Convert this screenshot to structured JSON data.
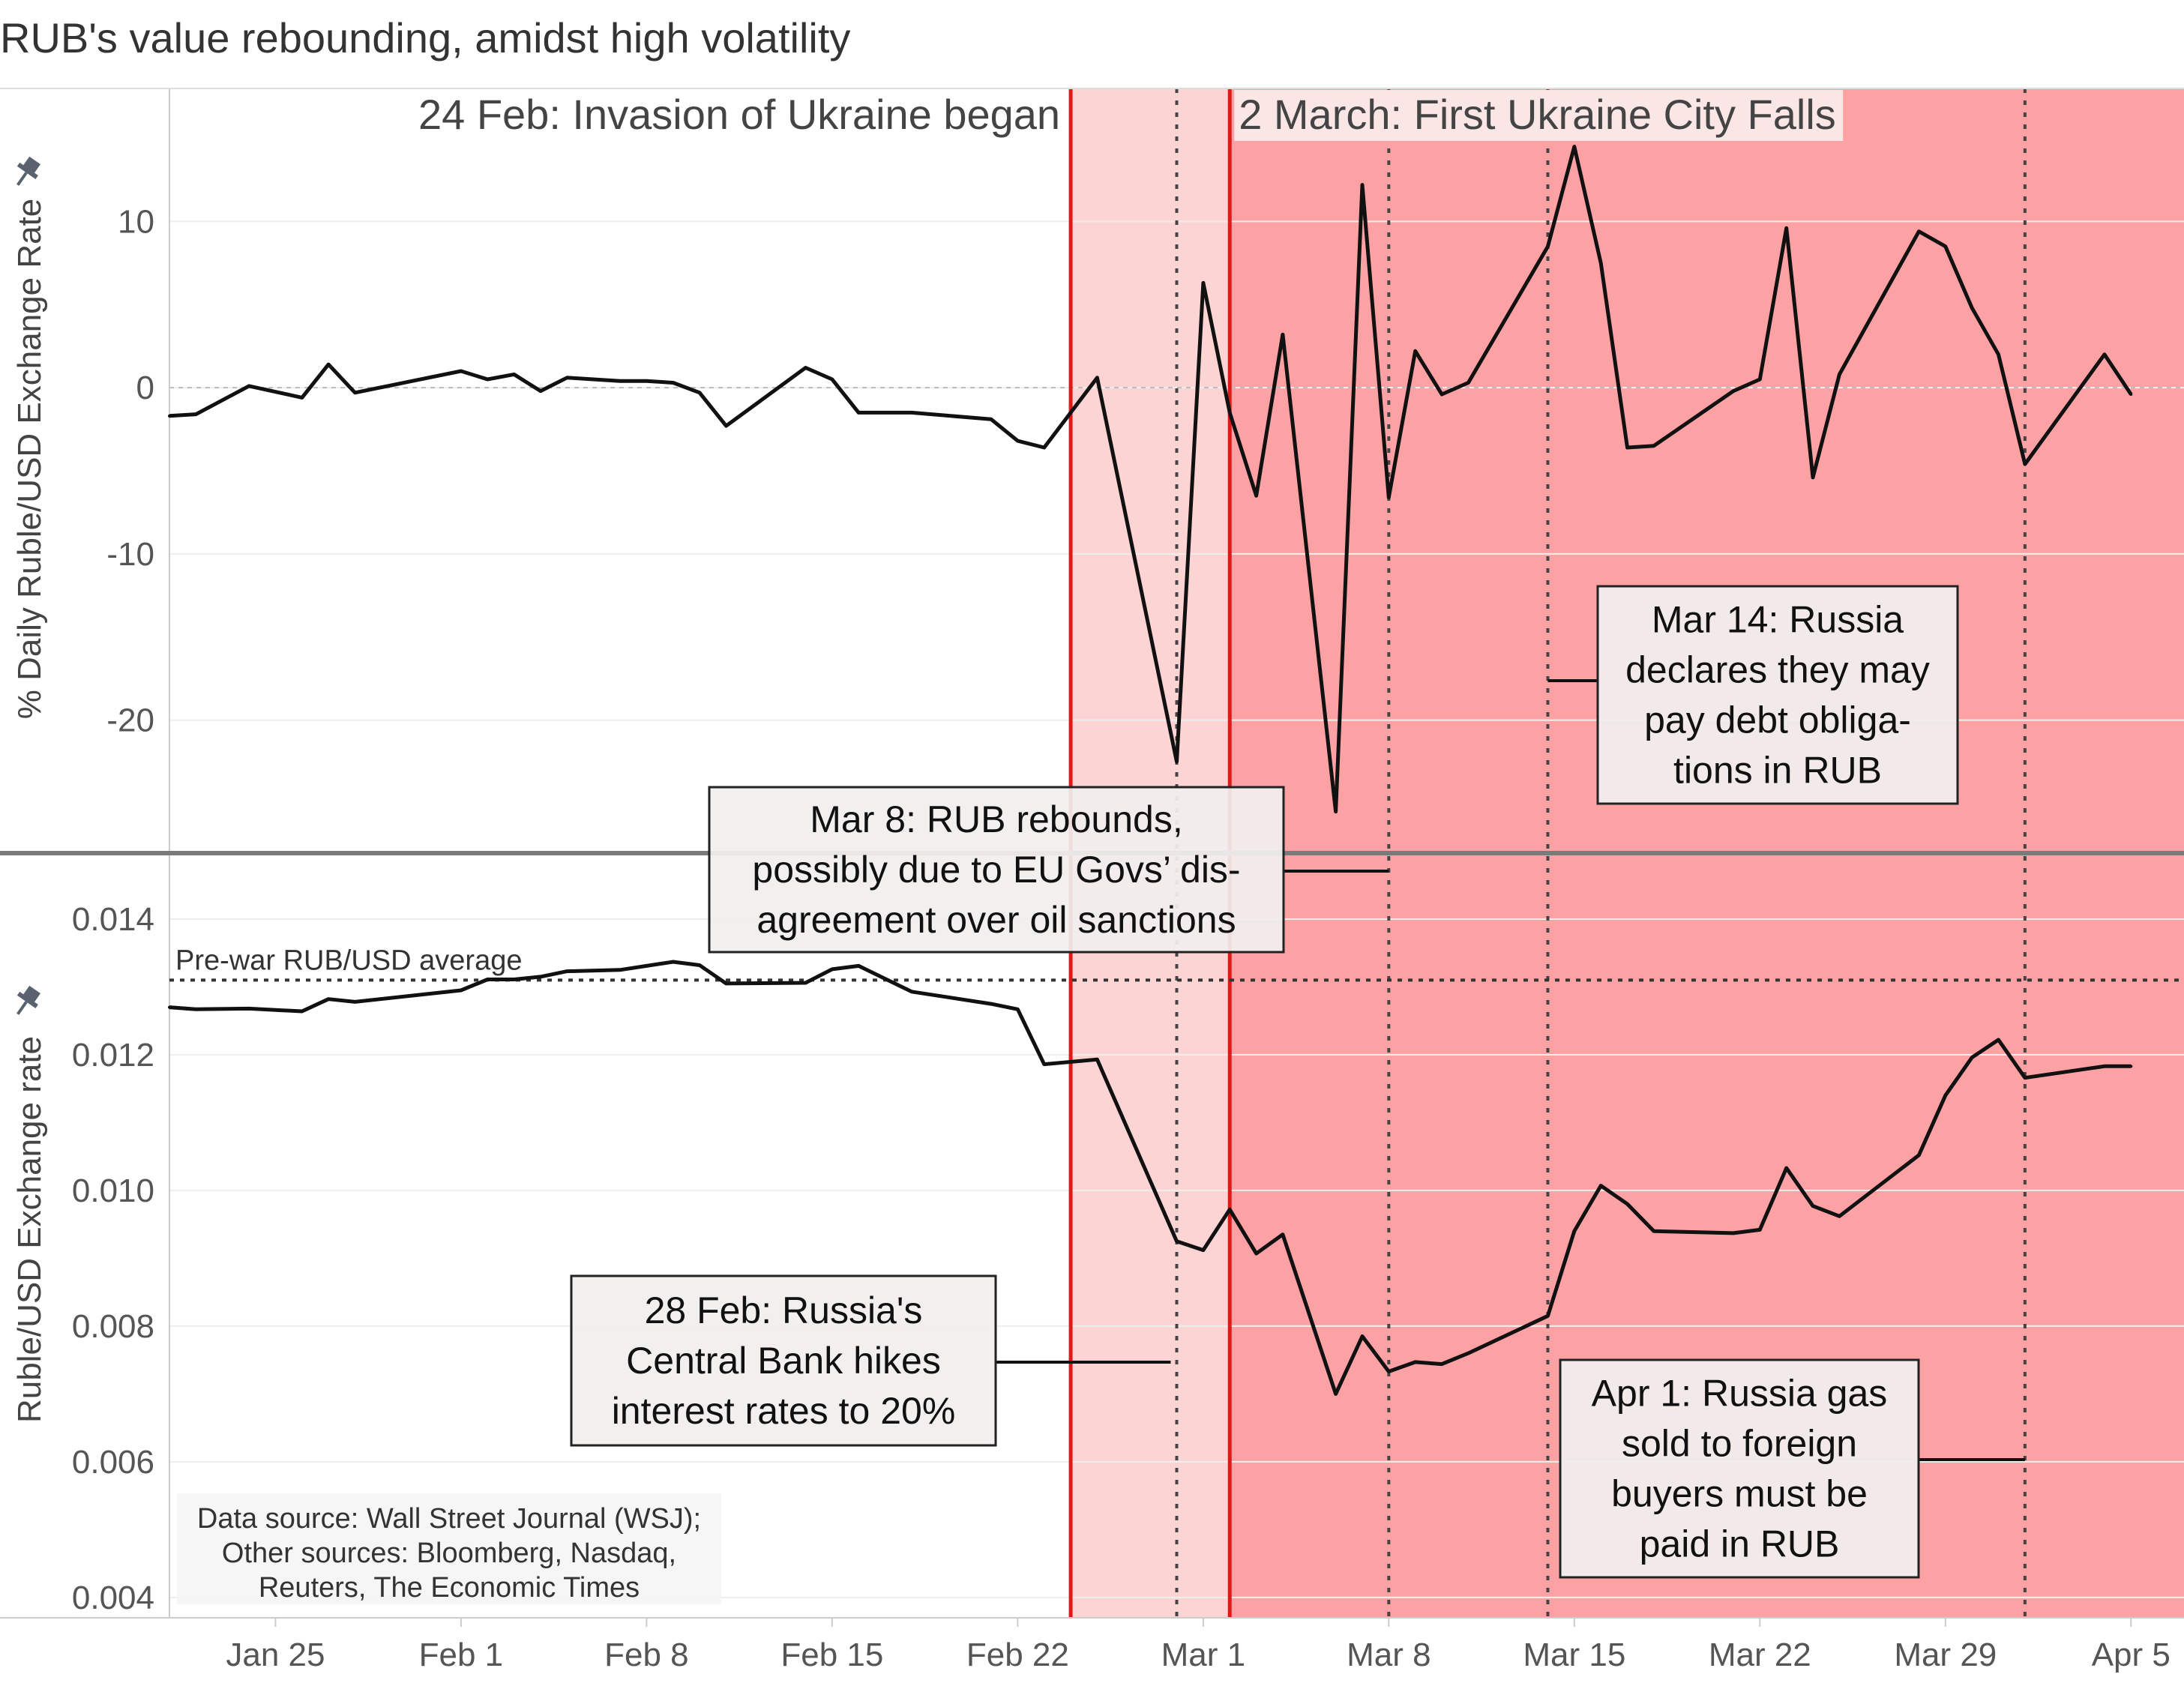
{
  "title": "RUB's value rebounding, amidst high volatility",
  "colors": {
    "pre_shade": "#fdd4d4",
    "post_shade": "#fda2a4",
    "event_line": "#e01818",
    "series_line": "#111111",
    "grid": "#eeeeee",
    "divider": "#7a7a7a"
  },
  "chart_data": [
    {
      "type": "line",
      "name": "top-panel",
      "ylabel": "% Daily Ruble/USD Exchange Rate",
      "ylim": [
        -28,
        18
      ],
      "yticks": [
        10,
        0,
        -10,
        -20
      ],
      "ytick_labels": [
        "10",
        "0",
        "-10",
        "-20"
      ],
      "pin_icon": "pin-icon",
      "x": [
        "2022-01-21",
        "2022-01-22",
        "2022-01-24",
        "2022-01-26",
        "2022-01-27",
        "2022-01-28",
        "2022-02-01",
        "2022-02-02",
        "2022-02-03",
        "2022-02-04",
        "2022-02-05",
        "2022-02-07",
        "2022-02-08",
        "2022-02-09",
        "2022-02-10",
        "2022-02-11",
        "2022-02-14",
        "2022-02-15",
        "2022-02-16",
        "2022-02-17",
        "2022-02-18",
        "2022-02-21",
        "2022-02-22",
        "2022-02-23",
        "2022-02-25",
        "2022-02-28",
        "2022-03-01",
        "2022-03-02",
        "2022-03-03",
        "2022-03-04",
        "2022-03-06",
        "2022-03-07",
        "2022-03-08",
        "2022-03-09",
        "2022-03-10",
        "2022-03-11",
        "2022-03-14",
        "2022-03-15",
        "2022-03-16",
        "2022-03-17",
        "2022-03-18",
        "2022-03-21",
        "2022-03-22",
        "2022-03-23",
        "2022-03-24",
        "2022-03-25",
        "2022-03-28",
        "2022-03-29",
        "2022-03-30",
        "2022-03-31",
        "2022-04-01",
        "2022-04-04",
        "2022-04-05"
      ],
      "y": [
        -1.7,
        -1.6,
        0.1,
        -0.6,
        1.4,
        -0.3,
        1.0,
        0.5,
        0.8,
        -0.2,
        0.6,
        0.4,
        0.4,
        0.3,
        -0.3,
        -2.3,
        1.2,
        0.5,
        -1.5,
        -1.5,
        -1.5,
        -1.9,
        -3.2,
        -3.6,
        0.6,
        -22.5,
        6.3,
        -1.5,
        -6.5,
        3.2,
        -25.5,
        12.2,
        -6.6,
        2.2,
        -0.4,
        0.3,
        8.5,
        14.5,
        7.5,
        -3.6,
        -3.5,
        -0.2,
        0.5,
        9.6,
        -5.4,
        0.8,
        9.4,
        8.5,
        4.8,
        2.0,
        -4.6,
        2.0,
        -0.4
      ]
    },
    {
      "type": "line",
      "name": "bottom-panel",
      "ylabel": "Ruble/USD Exchange rate",
      "ylim": [
        0.0037,
        0.01495
      ],
      "yticks": [
        0.014,
        0.012,
        0.01,
        0.008,
        0.006,
        0.004
      ],
      "ytick_labels": [
        "0.014",
        "0.012",
        "0.010",
        "0.008",
        "0.006",
        "0.004"
      ],
      "pin_icon": "pin-icon",
      "x": [
        "2022-01-21",
        "2022-01-22",
        "2022-01-24",
        "2022-01-26",
        "2022-01-27",
        "2022-01-28",
        "2022-02-01",
        "2022-02-02",
        "2022-02-03",
        "2022-02-04",
        "2022-02-05",
        "2022-02-07",
        "2022-02-08",
        "2022-02-09",
        "2022-02-10",
        "2022-02-11",
        "2022-02-14",
        "2022-02-15",
        "2022-02-16",
        "2022-02-17",
        "2022-02-18",
        "2022-02-21",
        "2022-02-22",
        "2022-02-23",
        "2022-02-25",
        "2022-02-28",
        "2022-03-01",
        "2022-03-02",
        "2022-03-03",
        "2022-03-04",
        "2022-03-06",
        "2022-03-07",
        "2022-03-08",
        "2022-03-09",
        "2022-03-10",
        "2022-03-11",
        "2022-03-14",
        "2022-03-15",
        "2022-03-16",
        "2022-03-17",
        "2022-03-18",
        "2022-03-21",
        "2022-03-22",
        "2022-03-23",
        "2022-03-24",
        "2022-03-25",
        "2022-03-28",
        "2022-03-29",
        "2022-03-30",
        "2022-03-31",
        "2022-04-01",
        "2022-04-04",
        "2022-04-05"
      ],
      "y": [
        0.0127,
        0.01267,
        0.01268,
        0.01264,
        0.01282,
        0.01278,
        0.01295,
        0.01311,
        0.01311,
        0.01315,
        0.01323,
        0.01325,
        0.01331,
        0.01337,
        0.01332,
        0.01305,
        0.01306,
        0.01326,
        0.01331,
        0.01312,
        0.01293,
        0.01275,
        0.01267,
        0.01186,
        0.01193,
        0.00925,
        0.00912,
        0.00972,
        0.00907,
        0.00935,
        0.007,
        0.00785,
        0.00733,
        0.00747,
        0.00744,
        0.0076,
        0.00815,
        0.0094,
        0.01007,
        0.0098,
        0.0094,
        0.00937,
        0.00942,
        0.01033,
        0.00977,
        0.00962,
        0.01052,
        0.0114,
        0.01196,
        0.01222,
        0.01166,
        0.01183,
        0.01183
      ]
    }
  ],
  "x_axis": {
    "ticks": [
      "2022-01-25",
      "2022-02-01",
      "2022-02-08",
      "2022-02-15",
      "2022-02-22",
      "2022-03-01",
      "2022-03-08",
      "2022-03-15",
      "2022-03-22",
      "2022-03-29",
      "2022-04-05"
    ],
    "tick_labels": [
      "Jan 25",
      "Feb 1",
      "Feb 8",
      "Feb 15",
      "Feb 22",
      "Mar 1",
      "Mar 8",
      "Mar 15",
      "Mar 22",
      "Mar 29",
      "Apr 5"
    ]
  },
  "events": [
    {
      "date": "2022-02-24",
      "label": "24 Feb: Invasion of Ukraine began"
    },
    {
      "date": "2022-03-02",
      "label": "2 March: First Ukraine City Falls"
    }
  ],
  "dotted_event_dates": [
    "2022-02-28",
    "2022-03-08",
    "2022-03-14",
    "2022-04-01"
  ],
  "reference_line": {
    "value": 0.0131,
    "label": "Pre-war RUB/USD average"
  },
  "annotations": [
    {
      "id": "mar8",
      "date": "2022-03-08",
      "lines": [
        "Mar 8: RUB rebounds,",
        "possibly due to EU Govs’ dis-",
        "agreement over oil sanctions"
      ]
    },
    {
      "id": "mar14",
      "date": "2022-03-14",
      "lines": [
        "Mar 14: Russia",
        "declares they may",
        "pay debt obliga-",
        "tions in RUB"
      ]
    },
    {
      "id": "feb28",
      "date": "2022-02-28",
      "lines": [
        "28 Feb: Russia's",
        "Central Bank hikes",
        "interest rates to 20%"
      ]
    },
    {
      "id": "apr1",
      "date": "2022-04-01",
      "lines": [
        "Apr 1: Russia gas",
        "sold to foreign",
        "buyers must be",
        "paid in RUB"
      ]
    }
  ],
  "source_note": {
    "lines": [
      "Data source: Wall Street Journal (WSJ);",
      "Other sources: Bloomberg, Nasdaq,",
      "Reuters, The Economic Times"
    ]
  }
}
